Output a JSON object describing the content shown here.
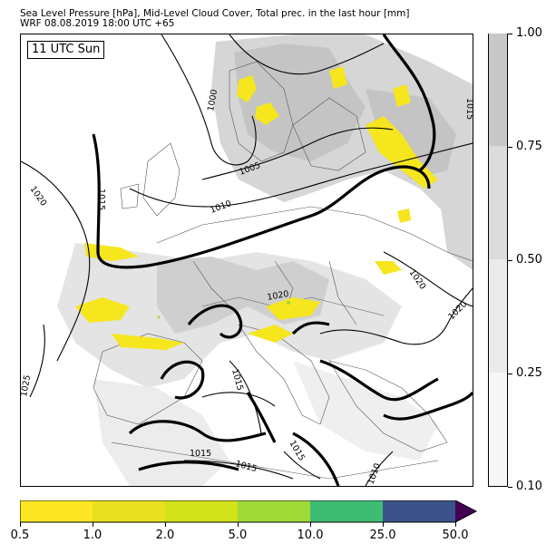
{
  "header": {
    "line1": "Sea Level Pressure [hPa], Mid-Level Cloud Cover, Total prec. in the last hour [mm]",
    "line2": "WRF 08.08.2019 18:00 UTC +65"
  },
  "map": {
    "time_label": "11 UTC Sun",
    "isobar_labels": [
      "1000",
      "1005",
      "1010",
      "1015",
      "1020",
      "1015",
      "1020",
      "1020",
      "1020",
      "1025",
      "1015",
      "1015",
      "1015",
      "1015",
      "1010",
      "1015"
    ],
    "colors": {
      "cloud_light": "#ebebeb",
      "cloud_mid": "#d6d6d6",
      "cloud_dense": "#c4c4c4",
      "precip_yellow": "#f5e61e",
      "precip_green": "#9bd93c"
    }
  },
  "cloud_colorbar": {
    "ticks": [
      "0.10",
      "0.25",
      "0.50",
      "0.75",
      "1.00"
    ],
    "colors": [
      "#f7f7f7",
      "#ebebeb",
      "#dcdcdc",
      "#c8c8c8"
    ]
  },
  "precip_colorbar": {
    "ticks": [
      "0.5",
      "1.0",
      "2.0",
      "5.0",
      "10.0",
      "25.0",
      "50.0"
    ],
    "colors": [
      "#fde725",
      "#e8e11f",
      "#d2e21b",
      "#a0da39",
      "#4ac16d",
      "#2fb47c",
      "#3b528b"
    ],
    "extend_color": "#440154"
  }
}
